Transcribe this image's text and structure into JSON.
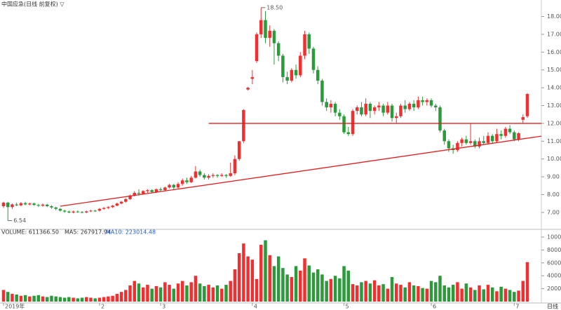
{
  "chart_data": {
    "type": "candlestick",
    "title": "中国应急(日线 前复权) ▽",
    "high_label": "18.50",
    "low_label": "6.54",
    "period_label": "日线",
    "up_color": "#f03030",
    "down_color": "#2a9a3a",
    "line_color": "#e02020",
    "categories": [
      "2019年",
      null,
      null,
      null,
      null,
      null,
      null,
      null,
      null,
      null,
      null,
      null,
      null,
      null,
      null,
      null,
      null,
      null,
      null,
      null,
      null,
      null,
      "2",
      null,
      null,
      null,
      null,
      null,
      null,
      null,
      null,
      null,
      null,
      null,
      null,
      null,
      "3",
      null,
      null,
      null,
      null,
      null,
      null,
      null,
      null,
      null,
      null,
      null,
      null,
      null,
      null,
      null,
      null,
      null,
      null,
      null,
      null,
      "4",
      null,
      null,
      null,
      null,
      null,
      null,
      null,
      null,
      null,
      null,
      null,
      null,
      null,
      null,
      null,
      null,
      null,
      null,
      null,
      null,
      "5",
      null,
      null,
      null,
      null,
      null,
      null,
      null,
      null,
      null,
      null,
      null,
      null,
      null,
      null,
      null,
      null,
      null,
      null,
      null,
      "6",
      null,
      null,
      null,
      null,
      null,
      null,
      null,
      null,
      null,
      null,
      null,
      null,
      null,
      null,
      null,
      null,
      null,
      null,
      "7",
      null,
      null,
      null
    ],
    "open": [
      7.35,
      7.55,
      7.3,
      7.45,
      7.4,
      7.52,
      7.45,
      7.5,
      7.42,
      7.38,
      7.44,
      7.35,
      7.28,
      7.2,
      7.1,
      7.05,
      7.0,
      7.05,
      7.02,
      7.0,
      7.06,
      7.1,
      7.1,
      7.2,
      7.25,
      7.3,
      7.38,
      7.5,
      7.6,
      7.75,
      7.95,
      8.1,
      8.05,
      8.2,
      8.25,
      8.15,
      8.3,
      8.25,
      8.4,
      8.55,
      8.4,
      8.6,
      8.8,
      8.7,
      8.95,
      9.3,
      9.1,
      8.95,
      9.05,
      9.1,
      9.05,
      9.1,
      9.05,
      9.2,
      10.0,
      11.0,
      13.9,
      14.5,
      15.5,
      17.0,
      17.8,
      16.8,
      17.2,
      16.5,
      15.8,
      14.6,
      14.4,
      15.0,
      14.7,
      15.8,
      17.0,
      16.2,
      15.0,
      14.4,
      13.2,
      12.9,
      13.1,
      12.6,
      12.4,
      11.5,
      11.4,
      12.7,
      12.9,
      12.5,
      13.1,
      12.7,
      12.9,
      13.0,
      12.6,
      13.0,
      12.3,
      12.4,
      13.0,
      12.8,
      13.1,
      12.9,
      13.3,
      13.2,
      13.3,
      13.0,
      12.9,
      11.6,
      11.0,
      10.6,
      10.5,
      10.9,
      11.1,
      10.9,
      11.0,
      10.7,
      11.0,
      10.9,
      11.3,
      11.0,
      11.4,
      11.3,
      11.7,
      11.5,
      11.1,
      12.2,
      12.4
    ],
    "high": [
      7.6,
      7.6,
      7.5,
      7.55,
      7.58,
      7.6,
      7.55,
      7.55,
      7.48,
      7.5,
      7.48,
      7.4,
      7.32,
      7.25,
      7.15,
      7.1,
      7.1,
      7.12,
      7.08,
      7.1,
      7.15,
      7.15,
      7.25,
      7.3,
      7.35,
      7.42,
      7.55,
      7.65,
      7.8,
      8.0,
      8.2,
      8.3,
      8.25,
      8.3,
      8.3,
      8.35,
      8.4,
      8.45,
      8.6,
      8.6,
      8.7,
      8.9,
      8.95,
      9.05,
      9.6,
      9.4,
      9.2,
      9.15,
      9.2,
      9.15,
      9.2,
      9.15,
      9.8,
      10.2,
      11.0,
      12.8,
      14.05,
      15.0,
      17.1,
      18.5,
      18.3,
      17.5,
      17.3,
      16.6,
      15.9,
      14.9,
      15.1,
      15.3,
      16.0,
      17.2,
      17.1,
      16.3,
      15.2,
      14.5,
      13.4,
      13.3,
      13.2,
      12.8,
      12.5,
      11.8,
      12.8,
      13.0,
      13.2,
      13.4,
      13.2,
      13.0,
      13.2,
      13.1,
      13.2,
      13.1,
      12.6,
      13.1,
      13.3,
      13.2,
      13.3,
      13.5,
      13.5,
      13.4,
      13.4,
      13.1,
      13.0,
      11.7,
      11.1,
      10.8,
      11.0,
      11.2,
      11.3,
      12.0,
      11.1,
      11.2,
      11.3,
      11.5,
      11.4,
      11.7,
      11.6,
      11.8,
      11.9,
      11.6,
      11.5,
      12.5,
      13.7
    ],
    "low": [
      7.25,
      6.54,
      7.2,
      7.35,
      7.35,
      7.4,
      7.4,
      7.38,
      7.3,
      7.32,
      7.3,
      7.2,
      7.12,
      7.05,
      6.98,
      6.95,
      6.95,
      6.98,
      6.95,
      6.96,
      7.02,
      7.03,
      7.05,
      7.15,
      7.2,
      7.25,
      7.35,
      7.45,
      7.55,
      7.7,
      7.9,
      7.95,
      8.0,
      8.1,
      8.1,
      8.1,
      8.2,
      8.2,
      8.35,
      8.3,
      8.35,
      8.5,
      8.6,
      8.65,
      8.9,
      9.0,
      8.85,
      8.85,
      8.95,
      8.95,
      9.0,
      8.95,
      9.0,
      9.1,
      9.9,
      10.9,
      13.85,
      14.2,
      15.4,
      16.8,
      16.5,
      16.3,
      15.3,
      15.5,
      14.3,
      14.2,
      14.3,
      14.5,
      14.6,
      15.6,
      15.9,
      14.8,
      14.2,
      13.0,
      12.7,
      12.6,
      12.4,
      12.2,
      11.4,
      11.3,
      11.3,
      12.5,
      12.4,
      12.4,
      12.3,
      12.5,
      12.7,
      12.4,
      12.5,
      12.1,
      12.0,
      12.3,
      12.6,
      12.7,
      12.7,
      12.8,
      13.0,
      13.0,
      12.9,
      12.7,
      11.5,
      10.8,
      10.4,
      10.3,
      10.4,
      10.7,
      10.8,
      10.8,
      10.6,
      10.6,
      10.8,
      10.8,
      10.9,
      10.9,
      11.1,
      11.2,
      11.4,
      11.0,
      11.0,
      12.0,
      12.3
    ],
    "close": [
      7.55,
      7.3,
      7.45,
      7.4,
      7.52,
      7.45,
      7.5,
      7.42,
      7.38,
      7.44,
      7.35,
      7.28,
      7.2,
      7.1,
      7.05,
      7.0,
      7.05,
      7.02,
      7.0,
      7.06,
      7.1,
      7.08,
      7.2,
      7.25,
      7.3,
      7.38,
      7.5,
      7.6,
      7.75,
      7.95,
      8.1,
      8.05,
      8.2,
      8.25,
      8.15,
      8.3,
      8.25,
      8.4,
      8.55,
      8.4,
      8.6,
      8.8,
      8.7,
      8.95,
      9.3,
      9.1,
      8.95,
      9.05,
      9.1,
      9.05,
      9.1,
      9.05,
      9.2,
      10.0,
      11.0,
      12.75,
      14.0,
      14.6,
      17.0,
      17.8,
      16.8,
      17.2,
      16.5,
      15.8,
      14.6,
      14.4,
      15.0,
      14.7,
      15.8,
      17.0,
      16.2,
      15.0,
      14.4,
      13.2,
      12.9,
      13.1,
      12.6,
      12.4,
      11.5,
      11.4,
      12.7,
      12.9,
      12.5,
      13.1,
      12.7,
      12.9,
      13.0,
      12.6,
      13.0,
      12.3,
      12.4,
      13.0,
      12.8,
      13.1,
      12.9,
      13.3,
      13.2,
      13.3,
      13.0,
      12.9,
      11.6,
      11.0,
      10.6,
      10.5,
      10.9,
      11.1,
      10.9,
      11.0,
      10.7,
      11.0,
      10.9,
      11.3,
      11.0,
      11.4,
      11.3,
      11.7,
      11.5,
      11.1,
      11.45,
      12.35,
      13.65
    ],
    "ylim": [
      6.13,
      18.73
    ],
    "yticks": [
      {
        "value": 7,
        "label": "7.00"
      },
      {
        "value": 8,
        "label": "8.00"
      },
      {
        "value": 9,
        "label": "9.00"
      },
      {
        "value": 10,
        "label": "10.00"
      },
      {
        "value": 11,
        "label": "11.00"
      },
      {
        "value": 12,
        "label": "12.00"
      },
      {
        "value": 13,
        "label": "13.00"
      },
      {
        "value": 14,
        "label": "14.00"
      },
      {
        "value": 15,
        "label": "15.00"
      },
      {
        "value": 16,
        "label": "16.00"
      },
      {
        "value": 17,
        "label": "17.00"
      },
      {
        "value": 18,
        "label": "18.00"
      }
    ],
    "trendlines": [
      {
        "x": [
          13,
          123.7
        ],
        "y": [
          7.35,
          11.3
        ]
      },
      {
        "x": [
          47,
          123.7
        ],
        "y": [
          12.0,
          12.0
        ]
      }
    ],
    "volume_label": "VOLUME: 611366.50",
    "ma5_label": "MA5: 267917.94",
    "ma10_label": "MA10: 223014.48",
    "ma10_color": "#2060d0",
    "volume": [
      1800,
      1500,
      1200,
      1100,
      900,
      1000,
      800,
      900,
      1000,
      800,
      700,
      900,
      800,
      700,
      600,
      700,
      600,
      500,
      600,
      700,
      600,
      500,
      600,
      700,
      800,
      900,
      1200,
      1500,
      1800,
      2500,
      3200,
      2800,
      2200,
      2600,
      2000,
      2400,
      2200,
      3000,
      2600,
      2000,
      2800,
      3200,
      2500,
      3000,
      4000,
      2800,
      2400,
      2600,
      2200,
      2500,
      2000,
      2600,
      3200,
      5000,
      7500,
      9000,
      7000,
      6500,
      3500,
      8800,
      9500,
      7200,
      5500,
      7000,
      5200,
      4200,
      3800,
      5500,
      4800,
      6700,
      5600,
      4500,
      5000,
      4200,
      3200,
      3500,
      4000,
      3600,
      5500,
      4800,
      2700,
      2500,
      3000,
      3200,
      2800,
      3300,
      2500,
      2700,
      2000,
      3800,
      2800,
      2600,
      2200,
      3000,
      2500,
      2400,
      2100,
      2000,
      3200,
      3000,
      4000,
      2500,
      2200,
      2600,
      3000,
      2000,
      2800,
      2200,
      1800,
      2500,
      1900,
      2600,
      2200,
      1600,
      2300,
      2000,
      1800,
      1500,
      1700,
      3200,
      6113.665
    ],
    "vlim": [
      0,
      10870
    ],
    "vticks": [
      2000,
      4000,
      6000,
      8000,
      10000
    ]
  }
}
